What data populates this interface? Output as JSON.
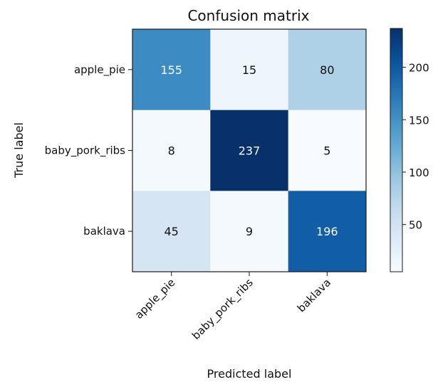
{
  "chart_data": {
    "type": "heatmap",
    "title": "Confusion matrix",
    "xlabel": "Predicted label",
    "ylabel": "True label",
    "x_categories": [
      "apple_pie",
      "baby_pork_ribs",
      "baklava"
    ],
    "y_categories": [
      "apple_pie",
      "baby_pork_ribs",
      "baklava"
    ],
    "values": [
      [
        155,
        15,
        80
      ],
      [
        8,
        237,
        5
      ],
      [
        45,
        9,
        196
      ]
    ],
    "colormap": "Blues",
    "color_range": [
      5,
      237
    ],
    "colorbar_ticks": [
      "50",
      "100",
      "150",
      "200"
    ],
    "colorbar_tick_values": [
      50,
      100,
      150,
      200
    ],
    "grid": false
  }
}
